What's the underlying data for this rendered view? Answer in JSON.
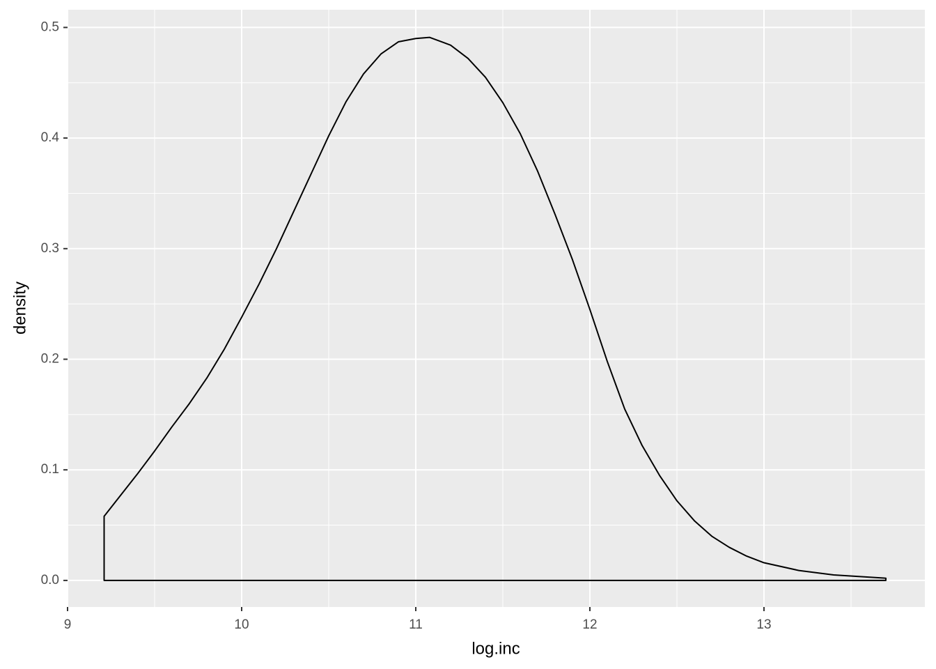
{
  "chart_data": {
    "type": "density",
    "x_label": "log.inc",
    "y_label": "density",
    "x": [
      9.21,
      9.3,
      9.4,
      9.5,
      9.6,
      9.7,
      9.8,
      9.9,
      10.0,
      10.1,
      10.2,
      10.3,
      10.4,
      10.5,
      10.6,
      10.7,
      10.8,
      10.9,
      11.0,
      11.08,
      11.2,
      11.3,
      11.4,
      11.5,
      11.6,
      11.7,
      11.8,
      11.9,
      12.0,
      12.1,
      12.2,
      12.3,
      12.4,
      12.5,
      12.6,
      12.7,
      12.8,
      12.9,
      13.0,
      13.2,
      13.4,
      13.7
    ],
    "values": [
      0.058,
      0.076,
      0.096,
      0.117,
      0.139,
      0.16,
      0.183,
      0.209,
      0.238,
      0.268,
      0.3,
      0.334,
      0.368,
      0.402,
      0.433,
      0.458,
      0.476,
      0.487,
      0.49,
      0.491,
      0.484,
      0.472,
      0.455,
      0.432,
      0.404,
      0.37,
      0.331,
      0.29,
      0.245,
      0.198,
      0.155,
      0.122,
      0.095,
      0.072,
      0.054,
      0.04,
      0.03,
      0.022,
      0.016,
      0.009,
      0.005,
      0.002
    ],
    "color": "#000000",
    "xlim": [
      9.0,
      13.924
    ],
    "ylim": [
      -0.024,
      0.516
    ],
    "xticks": [
      9,
      10,
      11,
      12,
      13
    ],
    "yticks": [
      {
        "value": 0,
        "label": "0.0"
      },
      0.1,
      0.2,
      0.3,
      0.4,
      0.5
    ],
    "x_minor_grid": [
      9.5,
      10.5,
      11.5,
      12.5,
      13.5
    ],
    "y_minor_grid": [
      0.05,
      0.15,
      0.25,
      0.35,
      0.45
    ],
    "grid": true
  }
}
